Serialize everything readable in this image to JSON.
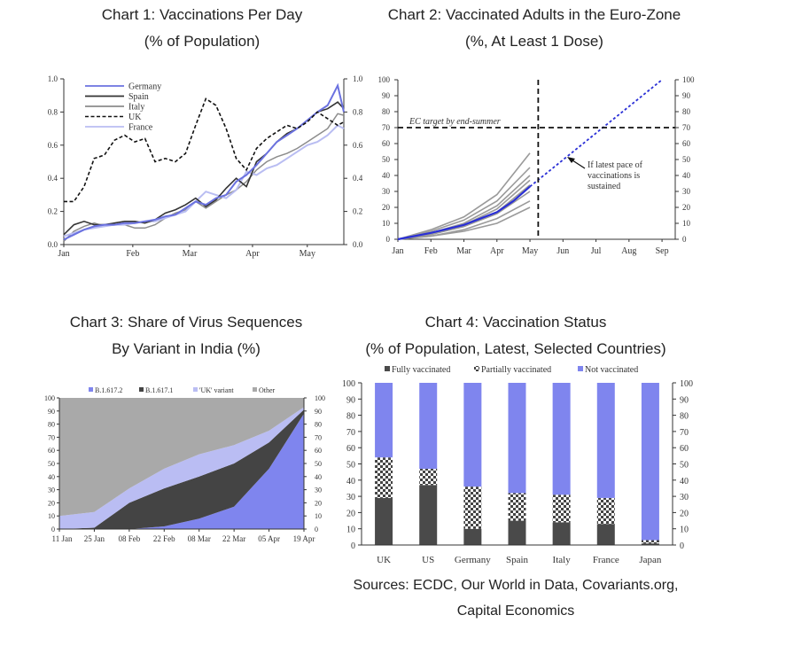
{
  "titles": {
    "c1_l1": "Chart 1: Vaccinations Per Day",
    "c1_l2": "(% of Population)",
    "c2_l1": "Chart 2: Vaccinated Adults in the Euro-Zone",
    "c2_l2": "(%, At Least 1 Dose)",
    "c3_l1": "Chart 3: Share of Virus Sequences",
    "c3_l2": "By Variant in India (%)",
    "c4_l1": "Chart 4: Vaccination Status",
    "c4_l2": "(% of Population, Latest, Selected Countries)"
  },
  "sources": {
    "line1": "Sources: ECDC, Our World in Data, Covariants.org,",
    "line2": "Capital Economics"
  },
  "chart_data": [
    {
      "type": "line",
      "title": "Chart 1: Vaccinations Per Day (% of Population)",
      "ylim": [
        0,
        1.0
      ],
      "yticks": [
        "0.0",
        "0.2",
        "0.4",
        "0.6",
        "0.8",
        "1.0"
      ],
      "xticks": [
        "Jan",
        "Feb",
        "Mar",
        "Apr",
        "May"
      ],
      "colors": {
        "Germany": "#6b72e0",
        "Spain": "#333333",
        "Italy": "#8c8c8c",
        "UK": "#111111",
        "France": "#b9bdf2"
      },
      "x": [
        0,
        5,
        10,
        15,
        20,
        25,
        30,
        35,
        40,
        45,
        50,
        55,
        60,
        65,
        70,
        75,
        80,
        85,
        90,
        95,
        100,
        105,
        110,
        115,
        120,
        125,
        130,
        135,
        138
      ],
      "series": [
        {
          "name": "Germany",
          "values": [
            0.03,
            0.06,
            0.09,
            0.11,
            0.12,
            0.12,
            0.13,
            0.13,
            0.14,
            0.15,
            0.17,
            0.18,
            0.22,
            0.26,
            0.24,
            0.28,
            0.3,
            0.38,
            0.42,
            0.48,
            0.55,
            0.62,
            0.66,
            0.7,
            0.75,
            0.8,
            0.84,
            0.96,
            0.8
          ]
        },
        {
          "name": "Spain",
          "values": [
            0.06,
            0.12,
            0.14,
            0.12,
            0.12,
            0.13,
            0.14,
            0.14,
            0.13,
            0.15,
            0.19,
            0.21,
            0.24,
            0.28,
            0.23,
            0.27,
            0.34,
            0.4,
            0.35,
            0.5,
            0.55,
            0.62,
            0.67,
            0.7,
            0.75,
            0.8,
            0.82,
            0.86,
            0.82
          ]
        },
        {
          "name": "Italy",
          "values": [
            0.02,
            0.08,
            0.11,
            0.13,
            0.11,
            0.12,
            0.12,
            0.1,
            0.1,
            0.12,
            0.16,
            0.19,
            0.21,
            0.26,
            0.22,
            0.26,
            0.3,
            0.33,
            0.38,
            0.45,
            0.5,
            0.53,
            0.55,
            0.58,
            0.62,
            0.66,
            0.7,
            0.79,
            0.78
          ]
        },
        {
          "name": "UK",
          "values": [
            0.26,
            0.26,
            0.35,
            0.52,
            0.54,
            0.63,
            0.66,
            0.62,
            0.64,
            0.5,
            0.52,
            0.5,
            0.55,
            0.72,
            0.88,
            0.84,
            0.7,
            0.52,
            0.45,
            0.58,
            0.64,
            0.68,
            0.72,
            0.7,
            0.74,
            0.8,
            0.76,
            0.72,
            0.74
          ]
        },
        {
          "name": "France",
          "values": [
            0.05,
            0.07,
            0.09,
            0.1,
            0.11,
            0.12,
            0.12,
            0.13,
            0.14,
            0.14,
            0.16,
            0.18,
            0.2,
            0.26,
            0.32,
            0.3,
            0.28,
            0.33,
            0.44,
            0.42,
            0.46,
            0.48,
            0.52,
            0.56,
            0.6,
            0.62,
            0.66,
            0.72,
            0.7
          ]
        }
      ]
    },
    {
      "type": "line",
      "title": "Chart 2: Vaccinated Adults in the Euro-Zone (%, At Least 1 Dose)",
      "ylim": [
        0,
        100
      ],
      "yticks": [
        0,
        10,
        20,
        30,
        40,
        50,
        60,
        70,
        80,
        90,
        100
      ],
      "xticks": [
        "Jan",
        "Feb",
        "Mar",
        "Apr",
        "May",
        "Jun",
        "Jul",
        "Aug",
        "Sep"
      ],
      "target_label": "EC target by end-summer",
      "target_value": 70,
      "annotation": [
        "If latest pace of",
        "vaccinations is",
        "sustained"
      ],
      "euro_zone": {
        "x": [
          0,
          1,
          2,
          3,
          3.5,
          4
        ],
        "values": [
          0,
          4,
          9,
          17,
          24,
          33
        ]
      },
      "projection": {
        "x": [
          4,
          8
        ],
        "values": [
          33,
          100
        ]
      },
      "countries": [
        {
          "x": [
            0,
            1,
            2,
            3,
            4
          ],
          "values": [
            0,
            6,
            14,
            28,
            54
          ]
        },
        {
          "x": [
            0,
            1,
            2,
            3,
            4
          ],
          "values": [
            0,
            5,
            12,
            24,
            45
          ]
        },
        {
          "x": [
            0,
            1,
            2,
            3,
            4
          ],
          "values": [
            0,
            4,
            10,
            21,
            40
          ]
        },
        {
          "x": [
            0,
            1,
            2,
            3,
            4
          ],
          "values": [
            0,
            4,
            9,
            19,
            37
          ]
        },
        {
          "x": [
            0,
            1,
            2,
            3,
            4
          ],
          "values": [
            0,
            3,
            8,
            17,
            34
          ]
        },
        {
          "x": [
            0,
            1,
            2,
            3,
            4
          ],
          "values": [
            0,
            3,
            8,
            16,
            30
          ]
        },
        {
          "x": [
            0,
            1,
            2,
            3,
            4
          ],
          "values": [
            0,
            2,
            6,
            13,
            24
          ]
        },
        {
          "x": [
            0,
            1,
            2,
            3,
            4
          ],
          "values": [
            0,
            2,
            5,
            10,
            20
          ]
        }
      ]
    },
    {
      "type": "area",
      "title": "Chart 3: Share of Virus Sequences By Variant in India (%)",
      "ylim": [
        0,
        100
      ],
      "yticks": [
        0,
        10,
        20,
        30,
        40,
        50,
        60,
        70,
        80,
        90,
        100
      ],
      "categories": [
        "11 Jan",
        "25 Jan",
        "08 Feb",
        "22 Feb",
        "08 Mar",
        "22 Mar",
        "05 Apr",
        "19 Apr"
      ],
      "series": [
        {
          "name": "B.1.617.2",
          "color": "#7f85ee",
          "values": [
            0,
            0,
            0,
            2,
            8,
            17,
            46,
            88
          ]
        },
        {
          "name": "B.1.617.1",
          "color": "#444444",
          "values": [
            0,
            1,
            20,
            29,
            32,
            33,
            20,
            3
          ]
        },
        {
          "name": "'UK' variant",
          "color": "#babdf3",
          "values": [
            10,
            12,
            11,
            15,
            17,
            14,
            9,
            2
          ]
        },
        {
          "name": "Other",
          "color": "#a9a9a9",
          "values": [
            90,
            87,
            69,
            54,
            43,
            36,
            25,
            7
          ]
        }
      ]
    },
    {
      "type": "bar",
      "title": "Chart 4: Vaccination Status (% of Population, Latest, Selected Countries)",
      "ylim": [
        0,
        100
      ],
      "yticks": [
        0,
        10,
        20,
        30,
        40,
        50,
        60,
        70,
        80,
        90,
        100
      ],
      "categories": [
        "UK",
        "US",
        "Germany",
        "Spain",
        "Italy",
        "France",
        "Japan"
      ],
      "series": [
        {
          "name": "Fully vaccinated",
          "values": [
            29,
            37,
            10,
            15,
            14,
            13,
            1
          ]
        },
        {
          "name": "Partially vaccinated",
          "values": [
            25,
            10,
            26,
            17,
            17,
            16,
            2
          ]
        },
        {
          "name": "Not vaccinated",
          "values": [
            46,
            53,
            64,
            68,
            69,
            71,
            97
          ]
        }
      ]
    }
  ]
}
